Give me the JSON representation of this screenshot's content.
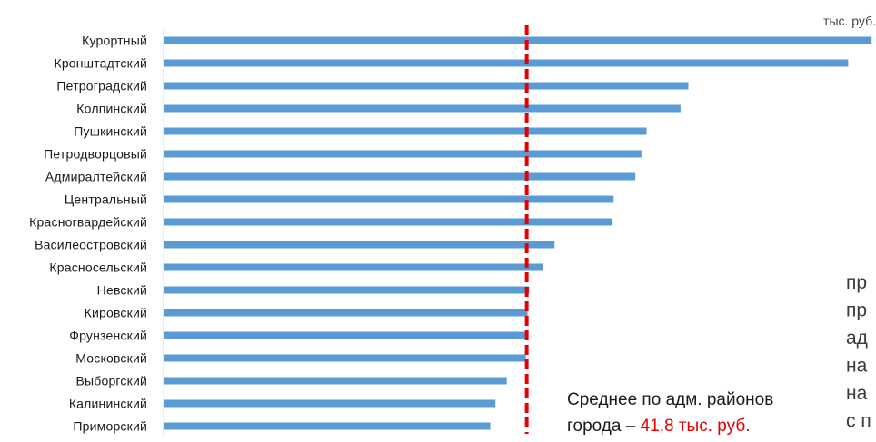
{
  "chart_data": {
    "type": "bar",
    "orientation": "horizontal",
    "unit": "тыс. руб.",
    "categories": [
      "Курортный",
      "Кронштадтский",
      "Петроградский",
      "Колпинский",
      "Пушкинский",
      "Петродворцовый",
      "Адмиралтейский",
      "Центральный",
      "Красногвардейский",
      "Василеостровский",
      "Красносельский",
      "Невский",
      "Кировский",
      "Фрунзенский",
      "Московский",
      "Выборгский",
      "Калининский",
      "Приморский"
    ],
    "values": [
      81.5,
      78.8,
      60.4,
      59.5,
      55.6,
      55.0,
      54.3,
      51.8,
      51.6,
      45.0,
      43.7,
      42.1,
      41.9,
      41.8,
      41.7,
      39.5,
      38.2,
      37.6
    ],
    "xlim": [
      0,
      82
    ],
    "bar_color": "#5b9bd5",
    "average": {
      "value": 41.8,
      "color": "#e60000",
      "line_style": "dashed",
      "label_text": "Среднее по адм. районов",
      "label_prefix": "города – ",
      "label_value": "41,8 тыс. руб."
    },
    "title": "",
    "xlabel": "",
    "ylabel": "",
    "grid": false
  },
  "side_text": {
    "lines": [
      "пр",
      "пр",
      "ад",
      "на",
      "на",
      "с п"
    ]
  }
}
